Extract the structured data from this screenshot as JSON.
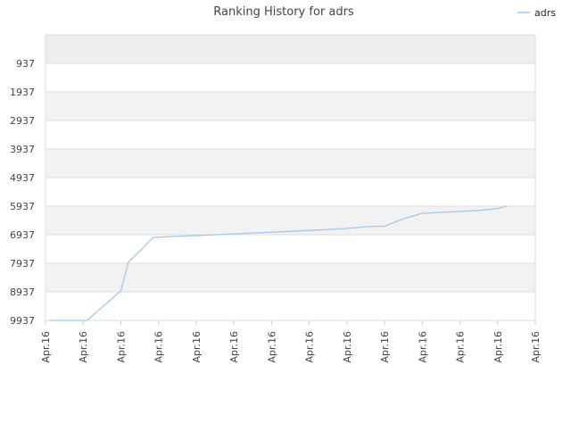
{
  "chart_data": {
    "type": "line",
    "title": "Ranking History for adrs",
    "legend_position": "top-right",
    "grid": true,
    "y_axis": {
      "reversed": true,
      "range": [
        -63,
        9937
      ],
      "ticks": [
        937,
        1937,
        2937,
        3937,
        4937,
        5937,
        6937,
        7937,
        8937,
        9937
      ],
      "tick_labels": [
        "937",
        "1937",
        "2937",
        "3937",
        "4937",
        "5937",
        "6937",
        "7937",
        "8937",
        "9937"
      ]
    },
    "x_axis": {
      "tick_labels": [
        "Apr.16",
        "Apr.16",
        "Apr.16",
        "Apr.16",
        "Apr.16",
        "Apr.16",
        "Apr.16",
        "Apr.16",
        "Apr.16",
        "Apr.16",
        "Apr.16",
        "Apr.16",
        "Apr.16",
        "Apr.16"
      ]
    },
    "series": [
      {
        "name": "adrs",
        "color": "#9ccaf2",
        "x": [
          0.1,
          1.1,
          2.0,
          2.2,
          2.55,
          2.85,
          3.5,
          4.0,
          5.0,
          6.0,
          7.0,
          8.0,
          8.5,
          9.0,
          9.5,
          10.0,
          11.0,
          11.5,
          12.0,
          12.25
        ],
        "values": [
          9937,
          9937,
          8900,
          7900,
          7450,
          7037,
          6987,
          6967,
          6907,
          6847,
          6787,
          6717,
          6657,
          6637,
          6377,
          6187,
          6117,
          6087,
          6017,
          5937
        ]
      }
    ]
  }
}
